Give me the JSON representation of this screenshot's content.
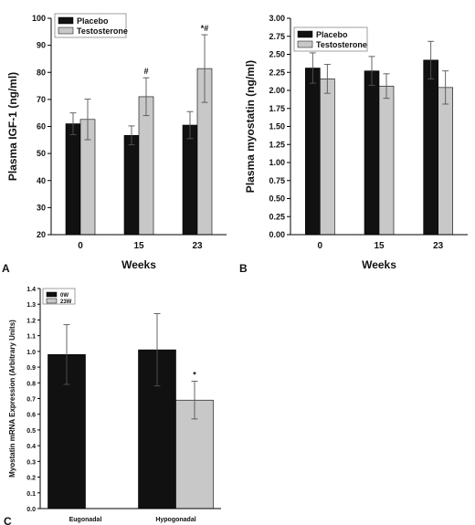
{
  "chart_data": [
    {
      "panel_label": "A",
      "type": "bar",
      "ylabel": "Plasma IGF-1 (ng/ml)",
      "xlabel": "Weeks",
      "categories": [
        "0",
        "15",
        "23"
      ],
      "ylim": [
        20,
        100
      ],
      "yticks": [
        20,
        30,
        40,
        50,
        60,
        70,
        80,
        90,
        100
      ],
      "ytick_labels": [
        "20",
        "30",
        "40",
        "50",
        "60",
        "70",
        "80",
        "90",
        "100"
      ],
      "legend": "top-left",
      "colors": [
        "#111111",
        "#c8c8c8"
      ],
      "series": [
        {
          "name": "Placebo",
          "values": [
            61,
            56.7,
            60.5
          ],
          "errors": [
            4,
            3.5,
            5
          ]
        },
        {
          "name": "Testosterone",
          "values": [
            62.6,
            71,
            81.4
          ],
          "errors": [
            7.5,
            7,
            12.5
          ]
        }
      ],
      "annotations": [
        {
          "series": 1,
          "index": 1,
          "text": "#"
        },
        {
          "series": 1,
          "index": 2,
          "text": "*#"
        }
      ]
    },
    {
      "panel_label": "B",
      "type": "bar",
      "ylabel": "Plasma myostatin (ng/ml)",
      "xlabel": "Weeks",
      "categories": [
        "0",
        "15",
        "23"
      ],
      "ylim": [
        0,
        3
      ],
      "yticks": [
        0,
        0.25,
        0.5,
        0.75,
        1,
        1.25,
        1.5,
        1.75,
        2,
        2.25,
        2.5,
        2.75,
        3
      ],
      "ytick_labels": [
        "0.00",
        "0.25",
        "0.50",
        "0.75",
        "1.00",
        "1.25",
        "1.50",
        "1.75",
        "2.00",
        "2.25",
        "2.50",
        "2.75",
        "3.00"
      ],
      "legend": "top-left",
      "colors": [
        "#111111",
        "#c8c8c8"
      ],
      "series": [
        {
          "name": "Placebo",
          "values": [
            2.31,
            2.27,
            2.42
          ],
          "errors": [
            0.21,
            0.2,
            0.26
          ]
        },
        {
          "name": "Testosterone",
          "values": [
            2.16,
            2.06,
            2.04
          ],
          "errors": [
            0.2,
            0.17,
            0.23
          ]
        }
      ],
      "annotations": []
    },
    {
      "panel_label": "C",
      "type": "bar",
      "ylabel": "Myostatin mRNA Expression (Arbitrary Units)",
      "xlabel": "",
      "categories": [
        "Eugonadal",
        "Hypogonadal"
      ],
      "ylim": [
        0,
        1.4
      ],
      "yticks": [
        0,
        0.1,
        0.2,
        0.3,
        0.4,
        0.5,
        0.6,
        0.7,
        0.8,
        0.9,
        1,
        1.1,
        1.2,
        1.3,
        1.4
      ],
      "ytick_labels": [
        "0.0",
        "0.1",
        "0.2",
        "0.3",
        "0.4",
        "0.5",
        "0.6",
        "0.7",
        "0.8",
        "0.9",
        "1.0",
        "1.1",
        "1.2",
        "1.3",
        "1.4"
      ],
      "legend": "top-left",
      "colors": [
        "#111111",
        "#c8c8c8"
      ],
      "series": [
        {
          "name": "0W",
          "values": [
            0.98,
            1.01
          ],
          "errors": [
            0.19,
            0.23
          ]
        },
        {
          "name": "23W",
          "values": [
            null,
            0.69
          ],
          "errors": [
            null,
            0.12
          ]
        }
      ],
      "annotations": [
        {
          "series": 1,
          "index": 1,
          "text": "*"
        }
      ]
    }
  ]
}
